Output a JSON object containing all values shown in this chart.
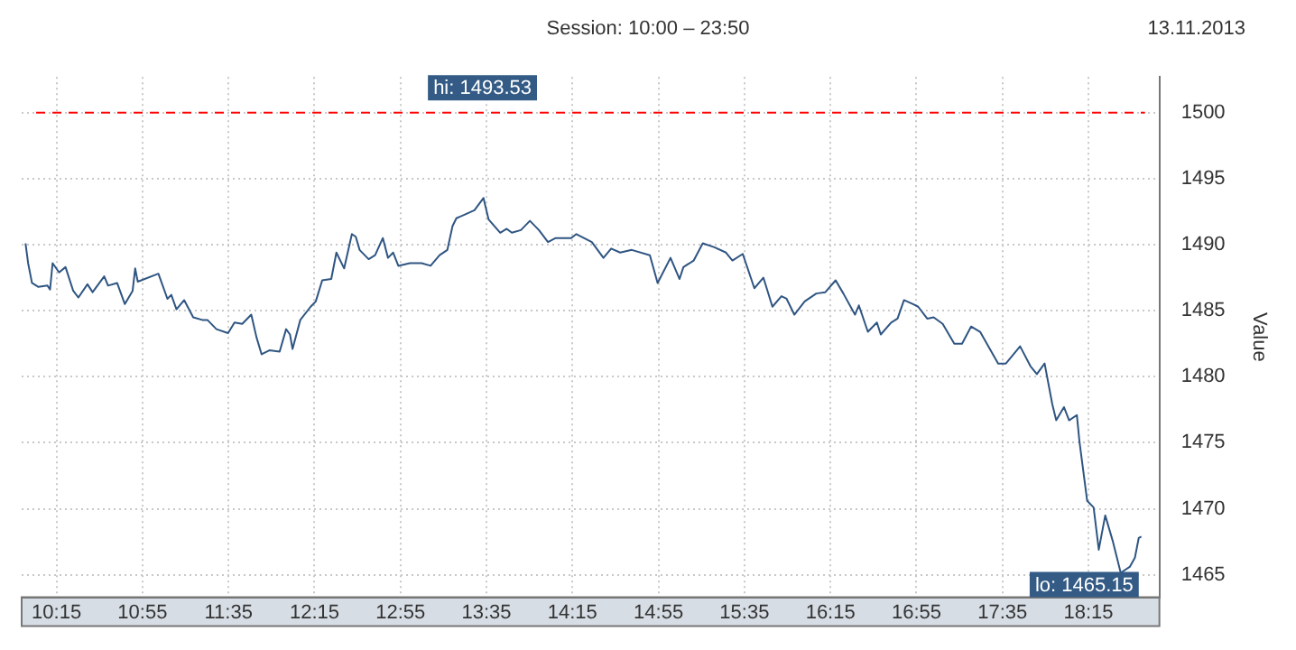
{
  "chart_data": {
    "type": "line",
    "title": "Session: 10:00 – 23:50",
    "subtitle": "13.11.2013",
    "ylabel": "Value",
    "x": [
      10.01,
      10.03,
      10.06,
      10.11,
      10.18,
      10.2,
      10.22,
      10.27,
      10.32,
      10.38,
      10.42,
      10.49,
      10.53,
      10.62,
      10.65,
      10.72,
      10.78,
      10.84,
      10.86,
      10.88,
      11.04,
      11.11,
      11.14,
      11.18,
      11.24,
      11.31,
      11.38,
      11.42,
      11.49,
      11.58,
      11.63,
      11.69,
      11.76,
      11.8,
      11.84,
      11.9,
      11.98,
      12.03,
      12.06,
      12.08,
      12.14,
      12.22,
      12.26,
      12.31,
      12.38,
      12.42,
      12.48,
      12.54,
      12.57,
      12.6,
      12.67,
      12.72,
      12.78,
      12.82,
      12.86,
      12.9,
      12.99,
      13.08,
      13.15,
      13.22,
      13.28,
      13.32,
      13.35,
      13.42,
      13.49,
      13.56,
      13.6,
      13.69,
      13.74,
      13.78,
      13.85,
      13.92,
      13.99,
      14.06,
      14.12,
      14.24,
      14.28,
      14.4,
      14.49,
      14.55,
      14.62,
      14.71,
      14.85,
      14.91,
      15.01,
      15.08,
      15.11,
      15.19,
      15.26,
      15.35,
      15.44,
      15.49,
      15.57,
      15.66,
      15.73,
      15.8,
      15.87,
      15.91,
      15.97,
      16.05,
      16.14,
      16.21,
      16.29,
      16.35,
      16.44,
      16.47,
      16.54,
      16.61,
      16.64,
      16.72,
      16.77,
      16.82,
      16.89,
      16.93,
      17.0,
      17.05,
      17.12,
      17.21,
      17.27,
      17.34,
      17.41,
      17.55,
      17.61,
      17.72,
      17.8,
      17.85,
      17.91,
      17.97,
      18.0,
      18.06,
      18.1,
      18.16,
      18.18,
      18.24,
      18.29,
      18.33,
      18.38,
      18.44,
      18.5,
      18.57,
      18.61,
      18.64,
      18.66
    ],
    "series": [
      {
        "color": "#2f5582",
        "values": [
          1490.1,
          1488.6,
          1487.1,
          1486.8,
          1486.9,
          1486.6,
          1488.6,
          1487.9,
          1488.3,
          1486.5,
          1486.0,
          1487.0,
          1486.4,
          1487.6,
          1486.9,
          1487.1,
          1485.5,
          1486.5,
          1488.2,
          1487.2,
          1487.8,
          1485.9,
          1486.2,
          1485.1,
          1485.8,
          1484.5,
          1484.3,
          1484.3,
          1483.6,
          1483.3,
          1484.1,
          1484.0,
          1484.7,
          1483.0,
          1481.7,
          1482.0,
          1481.9,
          1483.6,
          1483.2,
          1482.1,
          1484.3,
          1485.3,
          1485.7,
          1487.3,
          1487.4,
          1489.4,
          1488.2,
          1490.8,
          1490.6,
          1489.6,
          1488.9,
          1489.2,
          1490.5,
          1489.0,
          1489.4,
          1488.4,
          1488.6,
          1488.6,
          1488.4,
          1489.2,
          1489.6,
          1491.4,
          1492.0,
          1492.3,
          1492.6,
          1493.53,
          1491.9,
          1490.9,
          1491.2,
          1490.9,
          1491.1,
          1491.8,
          1491.1,
          1490.2,
          1490.5,
          1490.5,
          1490.8,
          1490.2,
          1489.0,
          1489.7,
          1489.4,
          1489.6,
          1489.2,
          1487.1,
          1489.0,
          1487.4,
          1488.3,
          1488.8,
          1490.1,
          1489.8,
          1489.4,
          1488.8,
          1489.3,
          1486.7,
          1487.5,
          1485.3,
          1486.1,
          1485.9,
          1484.7,
          1485.7,
          1486.3,
          1486.4,
          1487.3,
          1486.3,
          1484.7,
          1485.4,
          1483.4,
          1484.1,
          1483.2,
          1484.1,
          1484.4,
          1485.8,
          1485.5,
          1485.3,
          1484.4,
          1484.5,
          1484.0,
          1482.5,
          1482.5,
          1483.8,
          1483.4,
          1481.0,
          1481.0,
          1482.3,
          1480.8,
          1480.2,
          1481.0,
          1477.9,
          1476.7,
          1477.7,
          1476.7,
          1477.1,
          1475.1,
          1470.6,
          1470.1,
          1466.9,
          1469.5,
          1467.5,
          1465.15,
          1465.6,
          1466.3,
          1467.8,
          1467.9
        ]
      }
    ],
    "xlim": [
      9.98,
      18.8
    ],
    "xticks": [
      {
        "value": 10.25,
        "label": "10:15"
      },
      {
        "value": 10.9167,
        "label": "10:55"
      },
      {
        "value": 11.5833,
        "label": "11:35"
      },
      {
        "value": 12.25,
        "label": "12:15"
      },
      {
        "value": 12.9167,
        "label": "12:55"
      },
      {
        "value": 13.5833,
        "label": "13:35"
      },
      {
        "value": 14.25,
        "label": "14:15"
      },
      {
        "value": 14.9167,
        "label": "14:55"
      },
      {
        "value": 15.5833,
        "label": "15:35"
      },
      {
        "value": 16.25,
        "label": "16:15"
      },
      {
        "value": 16.9167,
        "label": "16:55"
      },
      {
        "value": 17.5833,
        "label": "17:35"
      },
      {
        "value": 18.25,
        "label": "18:15"
      }
    ],
    "ylim": [
      1463.3,
      1502.7
    ],
    "yticks": [
      1465,
      1470,
      1475,
      1480,
      1485,
      1490,
      1495,
      1500
    ],
    "grid": true,
    "marker": "none",
    "line_style": "solid",
    "ref_lines": [
      {
        "axis": "y",
        "value": 1500,
        "color": "#ff0000",
        "line_style": "dashed"
      }
    ],
    "annotations": [
      "hi: 1493.53",
      {
        "text": "lo: 1465.15",
        "x": 18.5,
        "y": 1465.15
      }
    ]
  }
}
